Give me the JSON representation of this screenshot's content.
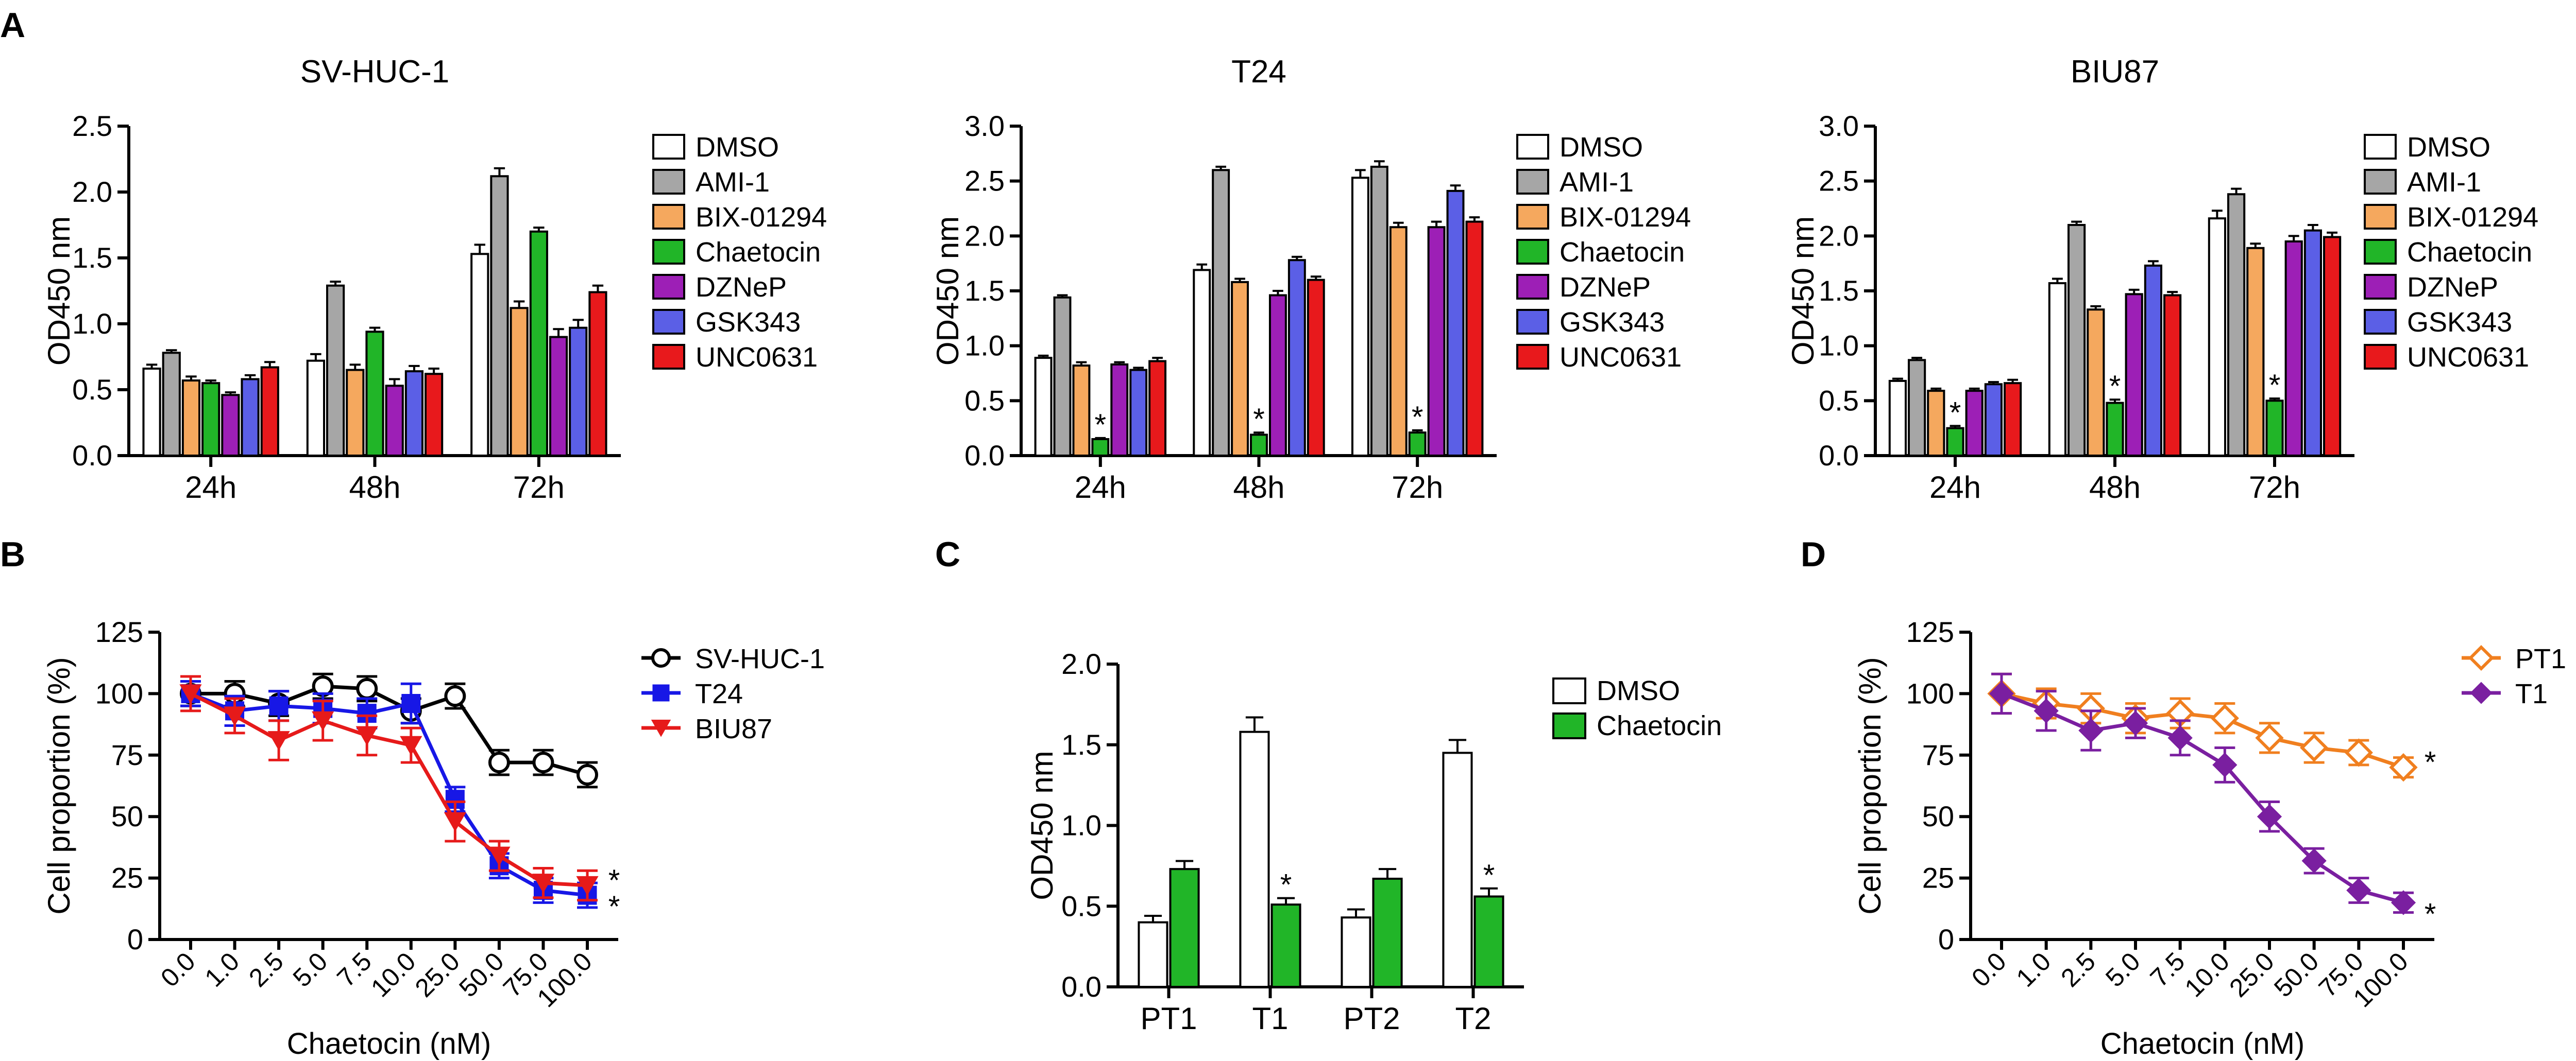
{
  "figure": {
    "panel_labels": [
      "A",
      "B",
      "C",
      "D"
    ],
    "colors": {
      "DMSO": "#ffffff",
      "AMI-1": "#a6a6a6",
      "BIX-01294": "#f5a85e",
      "Chaetocin": "#21b528",
      "DZNeP": "#9d1fb6",
      "GSK343": "#5b5fe6",
      "UNC0631": "#e8191c",
      "SV-HUC-1": "#000000",
      "T24": "#1717e6",
      "BIU87": "#e61a1a",
      "PT1": "#f07f1f",
      "T1": "#7a1fa0"
    }
  },
  "chart_data": [
    {
      "id": "A1",
      "type": "bar",
      "title": "SV-HUC-1",
      "xlabel": "",
      "ylabel": "OD450 nm",
      "ylim": [
        0,
        2.5
      ],
      "yticks": [
        "0.0",
        "0.5",
        "1.0",
        "1.5",
        "2.0",
        "2.5"
      ],
      "categories": [
        "24h",
        "48h",
        "72h"
      ],
      "legend": [
        "DMSO",
        "AMI-1",
        "BIX-01294",
        "Chaetocin",
        "DZNeP",
        "GSK343",
        "UNC0631"
      ],
      "series": [
        {
          "name": "DMSO",
          "values": [
            0.66,
            0.72,
            1.53
          ],
          "errors": [
            0.03,
            0.05,
            0.07
          ]
        },
        {
          "name": "AMI-1",
          "values": [
            0.78,
            1.29,
            2.12
          ],
          "errors": [
            0.02,
            0.03,
            0.06
          ]
        },
        {
          "name": "BIX-01294",
          "values": [
            0.57,
            0.65,
            1.12
          ],
          "errors": [
            0.03,
            0.04,
            0.05
          ]
        },
        {
          "name": "Chaetocin",
          "values": [
            0.55,
            0.94,
            1.7
          ],
          "errors": [
            0.02,
            0.03,
            0.03
          ]
        },
        {
          "name": "DZNeP",
          "values": [
            0.46,
            0.53,
            0.9
          ],
          "errors": [
            0.02,
            0.05,
            0.06
          ]
        },
        {
          "name": "GSK343",
          "values": [
            0.58,
            0.64,
            0.97
          ],
          "errors": [
            0.03,
            0.04,
            0.06
          ]
        },
        {
          "name": "UNC0631",
          "values": [
            0.67,
            0.62,
            1.24
          ],
          "errors": [
            0.04,
            0.04,
            0.05
          ]
        }
      ],
      "annotations": []
    },
    {
      "id": "A2",
      "type": "bar",
      "title": "T24",
      "xlabel": "",
      "ylabel": "OD450 nm",
      "ylim": [
        0,
        3.0
      ],
      "yticks": [
        "0.0",
        "0.5",
        "1.0",
        "1.5",
        "2.0",
        "2.5",
        "3.0"
      ],
      "categories": [
        "24h",
        "48h",
        "72h"
      ],
      "legend": [
        "DMSO",
        "AMI-1",
        "BIX-01294",
        "Chaetocin",
        "DZNeP",
        "GSK343",
        "UNC0631"
      ],
      "series": [
        {
          "name": "DMSO",
          "values": [
            0.89,
            1.69,
            2.53
          ],
          "errors": [
            0.02,
            0.05,
            0.07
          ]
        },
        {
          "name": "AMI-1",
          "values": [
            1.44,
            2.6,
            2.63
          ],
          "errors": [
            0.02,
            0.03,
            0.05
          ]
        },
        {
          "name": "BIX-01294",
          "values": [
            0.82,
            1.58,
            2.08
          ],
          "errors": [
            0.03,
            0.03,
            0.04
          ]
        },
        {
          "name": "Chaetocin",
          "values": [
            0.15,
            0.19,
            0.21
          ],
          "errors": [
            0.01,
            0.02,
            0.02
          ]
        },
        {
          "name": "DZNeP",
          "values": [
            0.83,
            1.46,
            2.08
          ],
          "errors": [
            0.02,
            0.04,
            0.05
          ]
        },
        {
          "name": "GSK343",
          "values": [
            0.78,
            1.78,
            2.41
          ],
          "errors": [
            0.02,
            0.03,
            0.05
          ]
        },
        {
          "name": "UNC0631",
          "values": [
            0.86,
            1.6,
            2.13
          ],
          "errors": [
            0.03,
            0.03,
            0.04
          ]
        }
      ],
      "annotations": [
        {
          "series": "Chaetocin",
          "category": "24h",
          "text": "*"
        },
        {
          "series": "Chaetocin",
          "category": "48h",
          "text": "*"
        },
        {
          "series": "Chaetocin",
          "category": "72h",
          "text": "*"
        }
      ]
    },
    {
      "id": "A3",
      "type": "bar",
      "title": "BIU87",
      "xlabel": "",
      "ylabel": "OD450 nm",
      "ylim": [
        0,
        3.0
      ],
      "yticks": [
        "0.0",
        "0.5",
        "1.0",
        "1.5",
        "2.0",
        "2.5",
        "3.0"
      ],
      "categories": [
        "24h",
        "48h",
        "72h"
      ],
      "legend": [
        "DMSO",
        "AMI-1",
        "BIX-01294",
        "Chaetocin",
        "DZNeP",
        "GSK343",
        "UNC0631"
      ],
      "series": [
        {
          "name": "DMSO",
          "values": [
            0.68,
            1.57,
            2.16
          ],
          "errors": [
            0.02,
            0.04,
            0.07
          ]
        },
        {
          "name": "AMI-1",
          "values": [
            0.87,
            2.1,
            2.38
          ],
          "errors": [
            0.02,
            0.03,
            0.05
          ]
        },
        {
          "name": "BIX-01294",
          "values": [
            0.59,
            1.33,
            1.89
          ],
          "errors": [
            0.02,
            0.03,
            0.04
          ]
        },
        {
          "name": "Chaetocin",
          "values": [
            0.25,
            0.48,
            0.5
          ],
          "errors": [
            0.02,
            0.03,
            0.02
          ]
        },
        {
          "name": "DZNeP",
          "values": [
            0.59,
            1.47,
            1.95
          ],
          "errors": [
            0.02,
            0.04,
            0.05
          ]
        },
        {
          "name": "GSK343",
          "values": [
            0.65,
            1.73,
            2.05
          ],
          "errors": [
            0.02,
            0.04,
            0.05
          ]
        },
        {
          "name": "UNC0631",
          "values": [
            0.66,
            1.46,
            1.99
          ],
          "errors": [
            0.03,
            0.03,
            0.04
          ]
        }
      ],
      "annotations": [
        {
          "series": "Chaetocin",
          "category": "24h",
          "text": "*"
        },
        {
          "series": "Chaetocin",
          "category": "48h",
          "text": "*"
        },
        {
          "series": "Chaetocin",
          "category": "72h",
          "text": "*"
        }
      ]
    },
    {
      "id": "B",
      "type": "line",
      "title": "",
      "xlabel": "Chaetocin (nM)",
      "ylabel": "Cell proportion (%)",
      "ylim": [
        0,
        125
      ],
      "yticks": [
        "0",
        "25",
        "50",
        "75",
        "100",
        "125"
      ],
      "x": [
        "0.0",
        "1.0",
        "2.5",
        "5.0",
        "7.5",
        "10.0",
        "25.0",
        "50.0",
        "75.0",
        "100.0"
      ],
      "legend": [
        "SV-HUC-1",
        "T24",
        "BIU87"
      ],
      "series": [
        {
          "name": "SV-HUC-1",
          "marker": "circle-open",
          "values": [
            100,
            100,
            96,
            103,
            102,
            93,
            99,
            72,
            72,
            67
          ],
          "errors": [
            5,
            5,
            5,
            5,
            5,
            5,
            5,
            5,
            5,
            5
          ]
        },
        {
          "name": "T24",
          "marker": "square",
          "values": [
            100,
            93,
            95,
            94,
            92,
            96,
            57,
            30,
            20,
            18
          ],
          "errors": [
            5,
            6,
            6,
            6,
            6,
            8,
            5,
            5,
            5,
            5
          ]
        },
        {
          "name": "BIU87",
          "marker": "triangle-down",
          "values": [
            100,
            91,
            81,
            89,
            83,
            79,
            48,
            34,
            23,
            22
          ],
          "errors": [
            7,
            7,
            8,
            8,
            8,
            7,
            8,
            6,
            6,
            6
          ]
        }
      ],
      "annotations": [
        {
          "series": "BIU87",
          "text": "*"
        },
        {
          "series": "T24",
          "text": "*"
        }
      ]
    },
    {
      "id": "C",
      "type": "bar",
      "title": "",
      "xlabel": "",
      "ylabel": "OD450 nm",
      "ylim": [
        0,
        2.0
      ],
      "yticks": [
        "0.0",
        "0.5",
        "1.0",
        "1.5",
        "2.0"
      ],
      "categories": [
        "PT1",
        "T1",
        "PT2",
        "T2"
      ],
      "legend": [
        "DMSO",
        "Chaetocin"
      ],
      "series": [
        {
          "name": "DMSO",
          "values": [
            0.4,
            1.58,
            0.43,
            1.45
          ],
          "errors": [
            0.04,
            0.09,
            0.05,
            0.08
          ]
        },
        {
          "name": "Chaetocin",
          "values": [
            0.73,
            0.51,
            0.67,
            0.56
          ],
          "errors": [
            0.05,
            0.04,
            0.06,
            0.05
          ]
        }
      ],
      "annotations": [
        {
          "series": "Chaetocin",
          "category": "T1",
          "text": "*"
        },
        {
          "series": "Chaetocin",
          "category": "T2",
          "text": "*"
        }
      ]
    },
    {
      "id": "D",
      "type": "line",
      "title": "",
      "xlabel": "Chaetocin (nM)",
      "ylabel": "Cell proportion (%)",
      "ylim": [
        0,
        125
      ],
      "yticks": [
        "0",
        "25",
        "50",
        "75",
        "100",
        "125"
      ],
      "x": [
        "0.0",
        "1.0",
        "2.5",
        "5.0",
        "7.5",
        "10.0",
        "25.0",
        "50.0",
        "75.0",
        "100.0"
      ],
      "legend": [
        "PT1",
        "T1"
      ],
      "series": [
        {
          "name": "PT1",
          "marker": "diamond-open",
          "values": [
            100,
            96,
            94,
            90,
            92,
            90,
            82,
            78,
            76,
            70
          ],
          "errors": [
            8,
            6,
            6,
            6,
            6,
            6,
            6,
            6,
            5,
            4
          ]
        },
        {
          "name": "T1",
          "marker": "diamond",
          "values": [
            100,
            93,
            85,
            88,
            82,
            71,
            50,
            32,
            20,
            15
          ],
          "errors": [
            8,
            8,
            8,
            6,
            7,
            7,
            6,
            5,
            5,
            4
          ]
        }
      ],
      "annotations": [
        {
          "series": "PT1",
          "text": "*"
        },
        {
          "series": "T1",
          "text": "*"
        }
      ]
    }
  ]
}
